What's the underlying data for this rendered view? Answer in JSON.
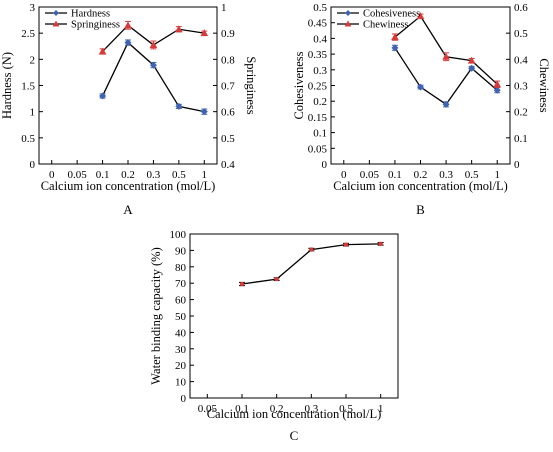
{
  "chart_data": [
    {
      "panel_label": "A",
      "type": "line",
      "x_categories": [
        "0",
        "0.05",
        "0.1",
        "0.2",
        "0.3",
        "0.5",
        "1"
      ],
      "xlabel": "Calcium ion concentration (mol/L)",
      "ylabel_left": "Hardness (N)",
      "ylabel_right": "Springiness",
      "ylim_left": [
        0,
        3
      ],
      "yticks_left": [
        "0",
        "0.5",
        "1",
        "1.5",
        "2",
        "2.5",
        "3"
      ],
      "ylim_right": [
        0.4,
        1.0
      ],
      "yticks_right": [
        "0.4",
        "0.5",
        "0.6",
        "0.7",
        "0.8",
        "0.9",
        "1"
      ],
      "legend_position": "top-left",
      "series": [
        {
          "name": "Hardness",
          "axis": "left",
          "color": "#3f63b0",
          "marker": "diamond",
          "x": [
            "0.1",
            "0.2",
            "0.3",
            "0.5",
            "1"
          ],
          "values": [
            1.3,
            2.32,
            1.89,
            1.1,
            1.0
          ],
          "errors": [
            0.04,
            0.05,
            0.05,
            0.04,
            0.05
          ]
        },
        {
          "name": "Springiness",
          "axis": "right",
          "color": "#d83a3a",
          "marker": "triangle",
          "x": [
            "0.1",
            "0.2",
            "0.3",
            "0.5",
            "1"
          ],
          "values": [
            0.83,
            0.93,
            0.855,
            0.915,
            0.9
          ],
          "errors": [
            0.01,
            0.015,
            0.015,
            0.01,
            0.008
          ]
        }
      ]
    },
    {
      "panel_label": "B",
      "type": "line",
      "x_categories": [
        "0",
        "0.05",
        "0.1",
        "0.2",
        "0.3",
        "0.5",
        "1"
      ],
      "xlabel": "Calcium ion concentration (mol/L)",
      "ylabel_left": "Cohesiveness",
      "ylabel_right": "Chewiness",
      "ylim_left": [
        0,
        0.5
      ],
      "yticks_left": [
        "0",
        "0.05",
        "0.1",
        "0.15",
        "0.2",
        "0.25",
        "0.3",
        "0.35",
        "0.4",
        "0.45",
        "0.5"
      ],
      "ylim_right": [
        0,
        0.6
      ],
      "yticks_right": [
        "0",
        "0.1",
        "0.2",
        "0.3",
        "0.4",
        "0.5",
        "0.6"
      ],
      "legend_position": "top-left",
      "series": [
        {
          "name": "Cohesiveness",
          "axis": "left",
          "color": "#3f63b0",
          "marker": "diamond",
          "x": [
            "0.1",
            "0.2",
            "0.3",
            "0.5",
            "1"
          ],
          "values": [
            0.37,
            0.245,
            0.19,
            0.305,
            0.235
          ],
          "errors": [
            0.008,
            0.006,
            0.008,
            0.006,
            0.008
          ]
        },
        {
          "name": "Chewiness",
          "axis": "right",
          "color": "#d83a3a",
          "marker": "triangle",
          "x": [
            "0.1",
            "0.2",
            "0.3",
            "0.5",
            "1"
          ],
          "values": [
            0.485,
            0.565,
            0.41,
            0.395,
            0.305
          ],
          "errors": [
            0.012,
            0.008,
            0.015,
            0.008,
            0.012
          ]
        }
      ]
    },
    {
      "panel_label": "C",
      "type": "line",
      "x_categories": [
        "0.05",
        "0.1",
        "0.2",
        "0.3",
        "0.5",
        "1"
      ],
      "xlabel": "Calcium ion concentration (mol/L)",
      "ylabel_left": "Water binding capacity (%)",
      "ylim_left": [
        0,
        100
      ],
      "yticks_left": [
        "0",
        "10",
        "20",
        "30",
        "40",
        "50",
        "60",
        "70",
        "80",
        "90",
        "100"
      ],
      "series": [
        {
          "name": "",
          "axis": "left",
          "color": "#000000",
          "marker": "point",
          "x": [
            "0.1",
            "0.2",
            "0.3",
            "0.5",
            "1"
          ],
          "values": [
            69.5,
            72.5,
            90.5,
            93.5,
            94
          ],
          "errors": [
            1.0,
            0.8,
            0.8,
            0.8,
            0.8
          ]
        }
      ]
    }
  ]
}
